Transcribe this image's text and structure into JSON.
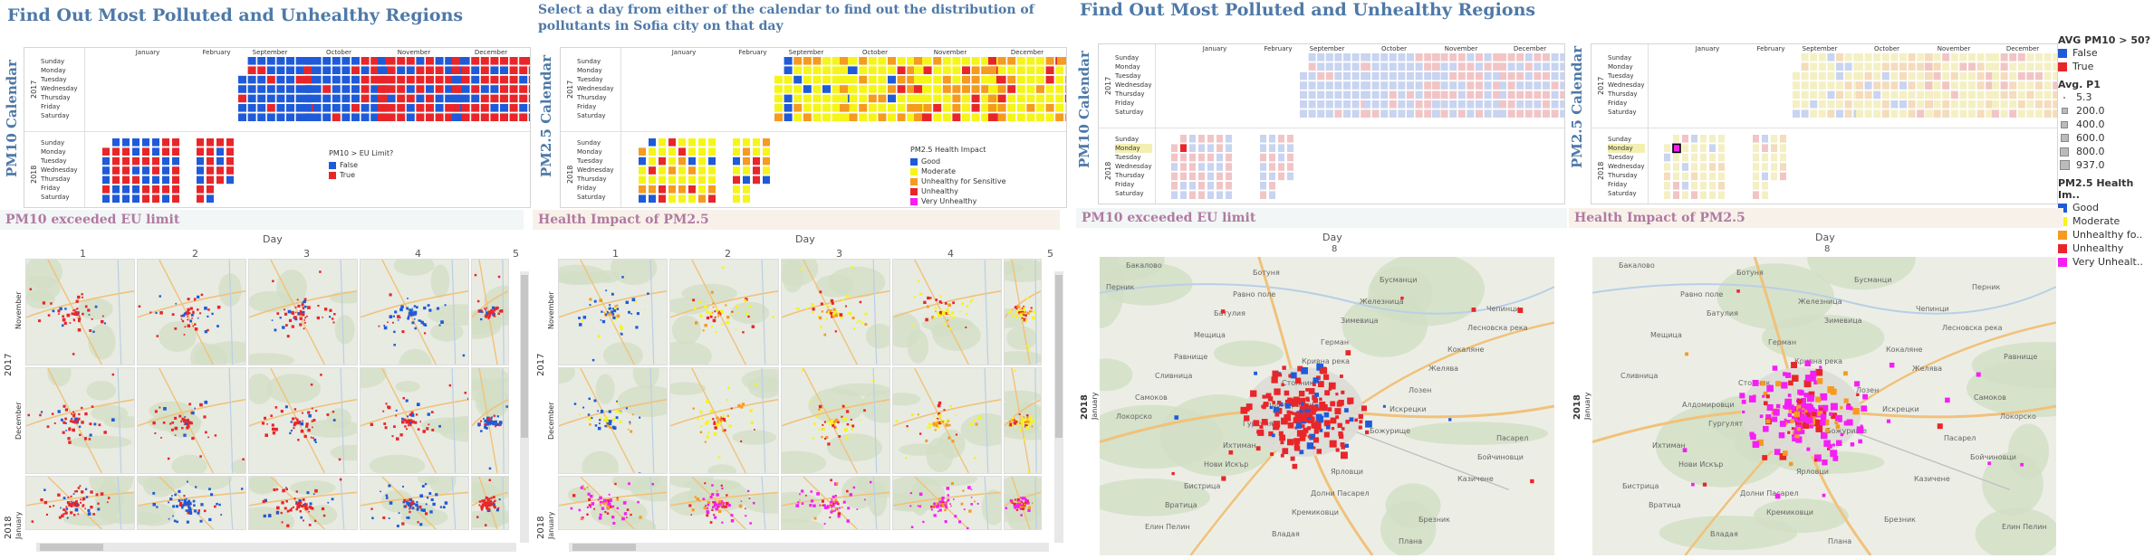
{
  "left": {
    "title": "Find Out Most Polluted and Unhealthy Regions",
    "pm10_title": "PM10 Calendar",
    "pm10_banner": "PM10 exceeded EU limit",
    "pm10_legend_title": "PM10 > EU Limit?",
    "pm10_legend": [
      {
        "label": "False",
        "color": "#1f5bd8"
      },
      {
        "label": "True",
        "color": "#e8262a"
      }
    ]
  },
  "middle": {
    "instruction": "Select a day from either of the calendar to find out the distribution of pollutants in Sofia city on that day",
    "pm25_title": "PM2.5 Calendar",
    "pm25_banner": "Health Impact of PM2.5",
    "pm25_legend_title": "PM2.5 Health Impact",
    "pm25_legend": [
      {
        "label": "Good",
        "color": "#1f5bd8"
      },
      {
        "label": "Moderate",
        "color": "#f5f51a"
      },
      {
        "label": "Unhealthy for Sensitive",
        "color": "#f59b1f"
      },
      {
        "label": "Unhealthy",
        "color": "#e8262a"
      },
      {
        "label": "Very Unhealthy",
        "color": "#f51ff5"
      }
    ]
  },
  "right": {
    "title": "Find Out Most Polluted and Unhealthy Regions",
    "pm10_title": "PM10 Calendar",
    "pm25_title": "PM2.5 Calendar",
    "pm10_banner": "PM10 exceeded EU limit",
    "pm25_banner": "Health Impact of PM2.5",
    "day_header": "Day",
    "day_value": "8",
    "row_year": "2018",
    "row_month": "January"
  },
  "calendar": {
    "months_2017": [
      "January",
      "February",
      "September",
      "October",
      "November",
      "December"
    ],
    "weekdays": [
      "Sunday",
      "Monday",
      "Tuesday",
      "Wednesday",
      "Thursday",
      "Friday",
      "Saturday"
    ],
    "years": [
      "2017",
      "2018"
    ],
    "selected_day": "Monday"
  },
  "small_multiples": {
    "day_header": "Day",
    "days": [
      "1",
      "2",
      "3",
      "4",
      "5"
    ],
    "row_months": [
      "November",
      "December",
      "January"
    ],
    "row_years": [
      "2017",
      "2018"
    ]
  },
  "right_legend": {
    "avg_title": "AVG PM10 > 50?",
    "avg_items": [
      {
        "label": "False",
        "color": "#1f5bd8"
      },
      {
        "label": "True",
        "color": "#e8262a"
      }
    ],
    "p1_title": "Avg. P1",
    "p1_items": [
      "5.3",
      "200.0",
      "400.0",
      "600.0",
      "800.0",
      "937.0"
    ],
    "health_title": "PM2.5 Health Im..",
    "health_items": [
      {
        "label": "Good",
        "color": "#1f5bd8"
      },
      {
        "label": "Moderate",
        "color": "#f5f51a"
      },
      {
        "label": "Unhealthy fo..",
        "color": "#f59b1f"
      },
      {
        "label": "Unhealthy",
        "color": "#e8262a"
      },
      {
        "label": "Very Unhealt..",
        "color": "#f51ff5"
      }
    ]
  },
  "map_labels": [
    "Бакалово",
    "Батулия",
    "Кривна река",
    "Искрецки",
    "Бойчиновци",
    "Вратица",
    "Ботуня",
    "Зимевица",
    "Желява",
    "Локорско",
    "Нови Искър",
    "Кремиковци",
    "Бусманци",
    "Лесновска река",
    "Сливница",
    "Гургулят",
    "Ярловци",
    "Брезник",
    "Перник",
    "Мещица",
    "Столник",
    "Божурище",
    "Казичене",
    "Елин Пелин",
    "Равно поле",
    "Герман",
    "Лозен",
    "Пасарел",
    "Бистрица",
    "Владая",
    "Железница",
    "Кокаляне",
    "Самоков",
    "Ихтиман",
    "Долни Пасарел",
    "Плана",
    "Чепинци",
    "Равнище",
    "Алдомировци"
  ]
}
